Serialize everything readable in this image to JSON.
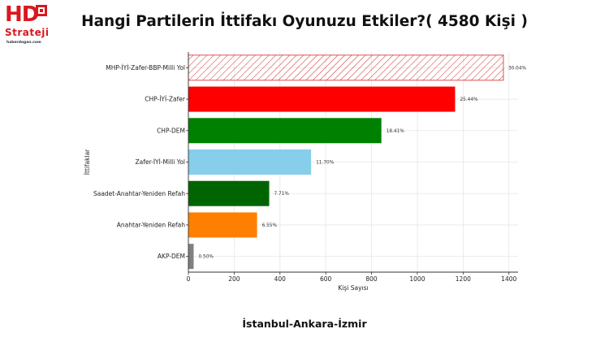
{
  "logo": {
    "mark": "HD",
    "word": "Strateji",
    "url": "haberdogan.com"
  },
  "title": "Hangi Partilerin İttifakı Oyunuzu Etkiler?( 4580 Kişi )",
  "footer": "İstanbul-Ankara-İzmir",
  "chart_data": {
    "type": "bar",
    "orientation": "horizontal",
    "title": "Hangi Partilerin İttifakı Oyunuzu Etkiler?( 4580 Kişi )",
    "xlabel": "Kişi Sayısı",
    "ylabel": "İttifaklar",
    "xlim": [
      0,
      1440
    ],
    "xticks": [
      0,
      200,
      400,
      600,
      800,
      1000,
      1200,
      1400
    ],
    "grid": true,
    "categories": [
      "MHP-İYİ-Zafer-BBP-Milli Yol",
      "CHP-İYİ-Zafer",
      "CHP-DEM",
      "Zafer-İYİ-Milli Yol",
      "Saadet-Anahtar-Yeniden Refah",
      "Anahtar-Yeniden Refah",
      "AKP-DEM"
    ],
    "values": [
      1376,
      1165,
      843,
      536,
      353,
      300,
      23
    ],
    "labels": [
      "30.04%",
      "25.44%",
      "18.41%",
      "11.70%",
      "7.71%",
      "6.55%",
      "0.50%"
    ],
    "colors": [
      "#ffffff",
      "#ff0000",
      "#008000",
      "#87ceeb",
      "#006400",
      "#ff8000",
      "#808080"
    ],
    "hatch": [
      true,
      false,
      false,
      false,
      false,
      false,
      false
    ],
    "hatch_color": "#d62728"
  }
}
